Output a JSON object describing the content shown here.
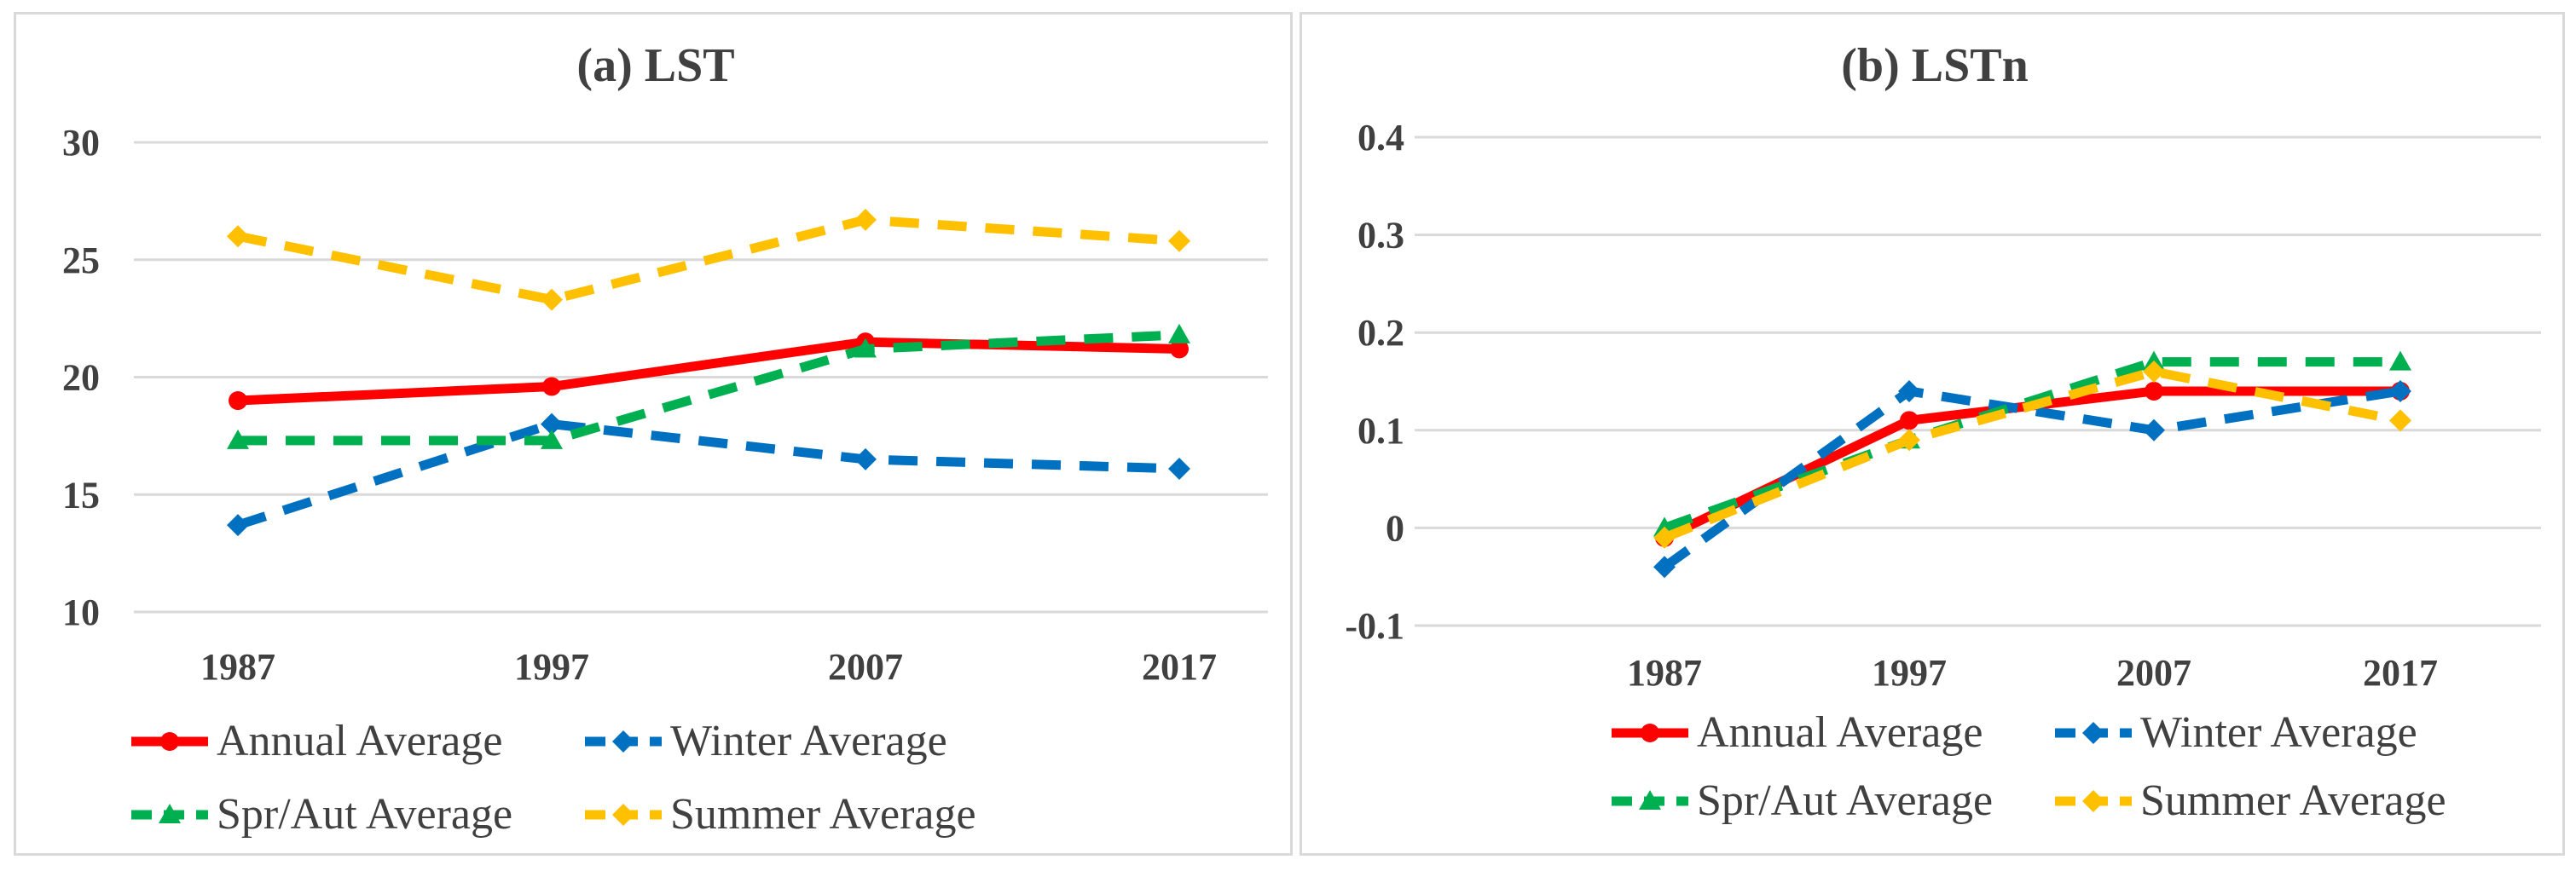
{
  "chart_data": [
    {
      "type": "line",
      "title": "(a) LST",
      "categories": [
        "1987",
        "1997",
        "2007",
        "2017"
      ],
      "ylim": [
        10,
        30
      ],
      "yticks": [
        "10",
        "15",
        "20",
        "25",
        "30"
      ],
      "grid": true,
      "legend_position": "bottom",
      "series": [
        {
          "name": "Annual Average",
          "values": [
            19.0,
            19.6,
            21.5,
            21.2
          ],
          "color": "#ff0000",
          "dash": "solid",
          "marker": "circle"
        },
        {
          "name": "Winter Average",
          "values": [
            13.7,
            18.0,
            16.5,
            16.1
          ],
          "color": "#0070c0",
          "dash": "dashed",
          "marker": "diamond"
        },
        {
          "name": "Spr/Aut Average",
          "values": [
            17.3,
            17.3,
            21.2,
            21.8
          ],
          "color": "#00b050",
          "dash": "dashed",
          "marker": "triangle"
        },
        {
          "name": "Summer Average",
          "values": [
            26.0,
            23.3,
            26.7,
            25.8
          ],
          "color": "#ffc000",
          "dash": "dashed",
          "marker": "diamond"
        }
      ]
    },
    {
      "type": "line",
      "title": "(b) LSTn",
      "categories": [
        "1987",
        "1997",
        "2007",
        "2017"
      ],
      "ylim": [
        -0.1,
        0.4
      ],
      "yticks": [
        "-0.1",
        "0",
        "0.1",
        "0.2",
        "0.3",
        "0.4"
      ],
      "grid": true,
      "legend_position": "bottom",
      "series": [
        {
          "name": "Annual Average",
          "values": [
            -0.01,
            0.11,
            0.14,
            0.14
          ],
          "color": "#ff0000",
          "dash": "solid",
          "marker": "circle"
        },
        {
          "name": "Winter Average",
          "values": [
            -0.04,
            0.14,
            0.1,
            0.14
          ],
          "color": "#0070c0",
          "dash": "dashed",
          "marker": "diamond"
        },
        {
          "name": "Spr/Aut Average",
          "values": [
            0.0,
            0.09,
            0.17,
            0.17
          ],
          "color": "#00b050",
          "dash": "dashed",
          "marker": "triangle"
        },
        {
          "name": "Summer Average",
          "values": [
            -0.01,
            0.09,
            0.16,
            0.11
          ],
          "color": "#ffc000",
          "dash": "dashed",
          "marker": "diamond"
        }
      ]
    }
  ]
}
